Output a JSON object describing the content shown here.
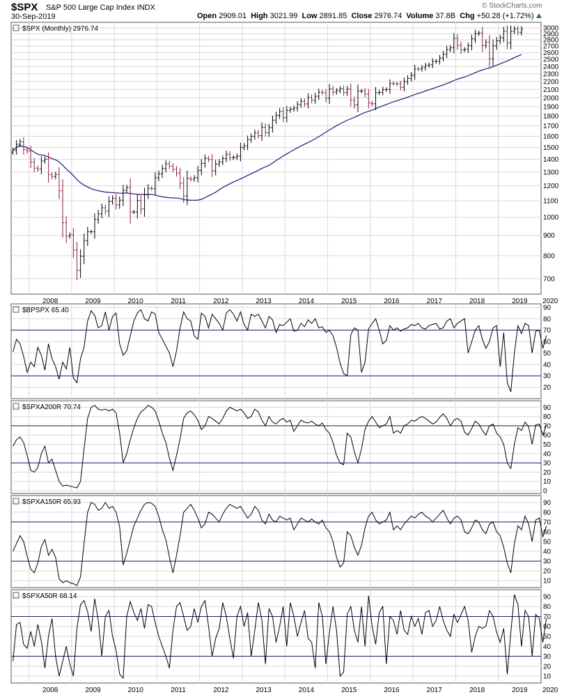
{
  "header": {
    "symbol": "$SPX",
    "description": "S&P 500 Large Cap Index INDX",
    "date": "30-Sep-2019",
    "watermark": "© StockCharts.com",
    "open_label": "Open",
    "open": "2909.01",
    "high_label": "High",
    "high": "3021.99",
    "low_label": "Low",
    "low": "2891.85",
    "close_label": "Close",
    "close": "2976.74",
    "volume_label": "Volume",
    "volume": "37.8B",
    "chg_label": "Chg",
    "chg": "+50.28 (+1.72%)"
  },
  "colors": {
    "up": "#000000",
    "down": "#8b1a4a",
    "ma": "#1a1a7a",
    "grid": "#d8d8d8",
    "refline": "#1a1a6e",
    "up_arrow": "#2e7d32"
  },
  "chart_data": [
    {
      "type": "ohlc",
      "legend": "$SPX (Monthly) 2976.74",
      "yscale": "log",
      "ylim": [
        640,
        3100
      ],
      "yticks": [
        700,
        800,
        900,
        1000,
        1100,
        1200,
        1300,
        1400,
        1500,
        1600,
        1700,
        1800,
        1900,
        2000,
        2100,
        2200,
        2300,
        2400,
        2500,
        2600,
        2700,
        2800,
        2900,
        3000
      ],
      "xlabels": [
        "2008",
        "2009",
        "2010",
        "2011",
        "2012",
        "2013",
        "2014",
        "2015",
        "2016",
        "2017",
        "2018",
        "2019",
        "2020"
      ],
      "x_start": "2007-08",
      "x_end": "2019-09",
      "close": [
        1474,
        1527,
        1549,
        1481,
        1468,
        1378,
        1330,
        1322,
        1386,
        1400,
        1280,
        1267,
        1282,
        1166,
        969,
        896,
        903,
        826,
        735,
        798,
        873,
        919,
        919,
        987,
        1020,
        1057,
        1036,
        1096,
        1116,
        1074,
        1104,
        1169,
        1187,
        1031,
        1031,
        1102,
        1049,
        1141,
        1183,
        1181,
        1258,
        1286,
        1327,
        1364,
        1345,
        1321,
        1292,
        1218,
        1131,
        1253,
        1247,
        1258,
        1312,
        1366,
        1408,
        1398,
        1310,
        1362,
        1379,
        1406,
        1441,
        1412,
        1416,
        1426,
        1498,
        1514,
        1569,
        1598,
        1631,
        1606,
        1686,
        1633,
        1682,
        1757,
        1806,
        1848,
        1783,
        1859,
        1872,
        1884,
        1924,
        1960,
        1931,
        2003,
        1972,
        2018,
        2067,
        2059,
        1995,
        2105,
        2068,
        2086,
        2107,
        2063,
        2104,
        1972,
        1920,
        2079,
        2080,
        2044,
        1940,
        1932,
        2060,
        2065,
        2097,
        2099,
        2174,
        2171,
        2168,
        2126,
        2198,
        2239,
        2279,
        2364,
        2363,
        2384,
        2412,
        2423,
        2470,
        2472,
        2519,
        2575,
        2647,
        2674,
        2824,
        2714,
        2641,
        2648,
        2705,
        2816,
        2902,
        2914,
        2712,
        2760,
        2507,
        2704,
        2784,
        2834,
        2946,
        2752,
        2942,
        2980,
        2926,
        2977
      ],
      "ma": {
        "window": 40
      }
    },
    {
      "type": "line",
      "legend": "$BPSPX 65.40",
      "ylim": [
        10,
        93
      ],
      "yticks": [
        20,
        30,
        40,
        50,
        60,
        70,
        80,
        90
      ],
      "reflines": [
        30,
        70
      ],
      "values": [
        51,
        62,
        58,
        47,
        33,
        42,
        38,
        55,
        48,
        35,
        58,
        45,
        38,
        27,
        42,
        36,
        55,
        28,
        24,
        45,
        55,
        78,
        87,
        83,
        72,
        74,
        86,
        70,
        82,
        85,
        58,
        48,
        52,
        65,
        78,
        85,
        88,
        80,
        78,
        86,
        84,
        68,
        62,
        56,
        50,
        38,
        52,
        72,
        86,
        80,
        78,
        65,
        62,
        85,
        82,
        72,
        84,
        80,
        76,
        70,
        85,
        88,
        84,
        78,
        86,
        75,
        70,
        84,
        82,
        84,
        78,
        72,
        82,
        79,
        68,
        75,
        74,
        77,
        80,
        69,
        70,
        76,
        73,
        79,
        76,
        80,
        72,
        73,
        68,
        70,
        65,
        55,
        41,
        32,
        30,
        66,
        72,
        70,
        33,
        42,
        71,
        76,
        80,
        70,
        58,
        61,
        74,
        70,
        72,
        69,
        71,
        72,
        75,
        74,
        76,
        72,
        71,
        74,
        75,
        76,
        71,
        72,
        78,
        80,
        72,
        76,
        78,
        80,
        50,
        60,
        70,
        74,
        62,
        54,
        60,
        72,
        74,
        38,
        68,
        24,
        16,
        50,
        74,
        67,
        76,
        74,
        50,
        69,
        70,
        54,
        65.4
      ]
    },
    {
      "type": "line",
      "legend": "$SPXA200R 70.74",
      "ylim": [
        -3,
        97
      ],
      "yticks": [
        0,
        10,
        20,
        30,
        40,
        50,
        60,
        70,
        80,
        90
      ],
      "reflines": [
        30,
        70
      ],
      "values": [
        48,
        55,
        58,
        52,
        38,
        22,
        20,
        25,
        40,
        48,
        30,
        34,
        22,
        10,
        5,
        6,
        5,
        4,
        3,
        10,
        45,
        78,
        90,
        92,
        88,
        87,
        88,
        86,
        88,
        84,
        62,
        30,
        40,
        55,
        68,
        78,
        85,
        88,
        92,
        90,
        86,
        75,
        62,
        52,
        35,
        22,
        38,
        56,
        78,
        84,
        86,
        82,
        76,
        66,
        70,
        80,
        78,
        75,
        72,
        78,
        86,
        90,
        88,
        86,
        88,
        84,
        78,
        80,
        88,
        85,
        76,
        70,
        80,
        74,
        72,
        76,
        78,
        74,
        76,
        64,
        70,
        76,
        74,
        73,
        75,
        72,
        70,
        73,
        66,
        62,
        52,
        38,
        30,
        28,
        62,
        58,
        42,
        30,
        45,
        66,
        75,
        80,
        74,
        68,
        70,
        72,
        80,
        62,
        65,
        62,
        70,
        72,
        76,
        75,
        78,
        80,
        78,
        75,
        72,
        74,
        79,
        83,
        78,
        70,
        76,
        78,
        75,
        63,
        60,
        67,
        75,
        72,
        65,
        60,
        70,
        72,
        62,
        58,
        50,
        30,
        24,
        50,
        68,
        65,
        74,
        69,
        50,
        71,
        72,
        60,
        70.74
      ]
    },
    {
      "type": "line",
      "legend": "$SPXA150R 65.93",
      "ylim": [
        3,
        97
      ],
      "yticks": [
        10,
        20,
        30,
        40,
        50,
        60,
        70,
        80,
        90
      ],
      "reflines": [
        30,
        70
      ],
      "values": [
        40,
        48,
        56,
        50,
        35,
        22,
        18,
        28,
        45,
        52,
        36,
        42,
        34,
        12,
        8,
        10,
        8,
        7,
        5,
        14,
        48,
        80,
        90,
        88,
        82,
        84,
        90,
        84,
        86,
        80,
        65,
        26,
        38,
        52,
        66,
        74,
        82,
        88,
        90,
        89,
        86,
        76,
        62,
        52,
        34,
        18,
        36,
        56,
        80,
        84,
        88,
        82,
        74,
        64,
        68,
        80,
        78,
        74,
        70,
        78,
        84,
        88,
        86,
        84,
        86,
        80,
        74,
        78,
        86,
        82,
        72,
        68,
        78,
        72,
        70,
        76,
        74,
        72,
        74,
        62,
        68,
        74,
        72,
        70,
        73,
        70,
        68,
        72,
        64,
        60,
        50,
        34,
        24,
        28,
        60,
        56,
        44,
        36,
        46,
        64,
        76,
        80,
        72,
        68,
        70,
        72,
        80,
        62,
        66,
        62,
        68,
        72,
        76,
        74,
        78,
        80,
        76,
        74,
        70,
        74,
        78,
        82,
        74,
        68,
        74,
        76,
        72,
        60,
        58,
        64,
        72,
        70,
        62,
        58,
        68,
        70,
        60,
        56,
        44,
        28,
        18,
        48,
        66,
        62,
        76,
        68,
        50,
        72,
        74,
        55,
        65.93
      ]
    },
    {
      "type": "line",
      "legend": "$SPXA50R 68.14",
      "ylim": [
        3,
        97
      ],
      "yticks": [
        10,
        20,
        30,
        40,
        50,
        60,
        70,
        80,
        90
      ],
      "reflines": [
        30,
        70
      ],
      "values": [
        25,
        62,
        64,
        42,
        38,
        55,
        40,
        62,
        45,
        18,
        50,
        68,
        30,
        10,
        25,
        40,
        22,
        10,
        58,
        82,
        86,
        75,
        55,
        88,
        66,
        30,
        70,
        76,
        50,
        36,
        12,
        8,
        70,
        85,
        74,
        66,
        78,
        58,
        82,
        80,
        64,
        50,
        40,
        30,
        18,
        56,
        80,
        84,
        70,
        56,
        60,
        78,
        64,
        80,
        86,
        60,
        30,
        48,
        58,
        84,
        70,
        48,
        28,
        70,
        80,
        60,
        74,
        30,
        56,
        84,
        66,
        22,
        78,
        70,
        44,
        60,
        80,
        40,
        84,
        70,
        50,
        64,
        76,
        48,
        44,
        18,
        84,
        70,
        22,
        54,
        80,
        56,
        10,
        14,
        72,
        80,
        56,
        44,
        80,
        40,
        91,
        60,
        42,
        74,
        80,
        22,
        70,
        66,
        52,
        76,
        56,
        52,
        70,
        60,
        68,
        52,
        74,
        76,
        60,
        66,
        80,
        66,
        56,
        50,
        72,
        64,
        72,
        80,
        66,
        34,
        50,
        60,
        58,
        60,
        76,
        70,
        54,
        44,
        58,
        12,
        54,
        92,
        82,
        40,
        76,
        70,
        30,
        72,
        68,
        44,
        68.14
      ]
    }
  ]
}
